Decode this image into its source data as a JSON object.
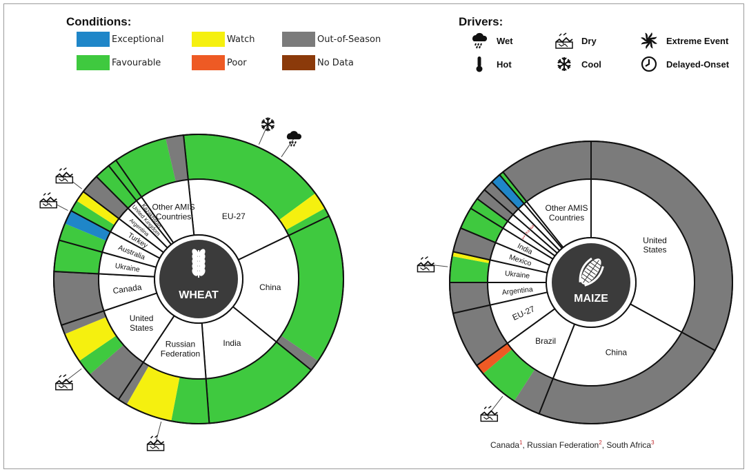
{
  "legend": {
    "conditions_title": "Conditions:",
    "conditions": [
      {
        "key": "exceptional",
        "label": "Exceptional",
        "color": "#1f86c8"
      },
      {
        "key": "watch",
        "label": "Watch",
        "color": "#f5f00f"
      },
      {
        "key": "oos",
        "label": "Out-of-Season",
        "color": "#7b7b7b"
      },
      {
        "key": "favourable",
        "label": "Favourable",
        "color": "#3fc93f"
      },
      {
        "key": "poor",
        "label": "Poor",
        "color": "#ee5a24"
      },
      {
        "key": "nodata",
        "label": "No Data",
        "color": "#8b3a0a"
      }
    ],
    "drivers_title": "Drivers:",
    "drivers": [
      {
        "key": "wet",
        "label": "Wet",
        "icon": "rain-cloud-icon"
      },
      {
        "key": "dry",
        "label": "Dry",
        "icon": "dry-cracked-soil-icon"
      },
      {
        "key": "extreme",
        "label": "Extreme Event",
        "icon": "hurricane-icon"
      },
      {
        "key": "hot",
        "label": "Hot",
        "icon": "thermometer-icon"
      },
      {
        "key": "cool",
        "label": "Cool",
        "icon": "snowflake-icon"
      },
      {
        "key": "delayed",
        "label": "Delayed-Onset",
        "icon": "clock-icon"
      }
    ]
  },
  "chart_data": [
    {
      "type": "pie",
      "subtype": "sunburst",
      "center_label": "WHEAT",
      "center_icon": "wheat-icon",
      "countries": [
        {
          "name": "EU-27",
          "share": 0.195,
          "conditions": [
            {
              "c": "favourable",
              "w": 0.85
            },
            {
              "c": "watch",
              "w": 0.1
            },
            {
              "c": "favourable",
              "w": 0.05
            }
          ],
          "drivers": [
            "cool",
            "wet"
          ]
        },
        {
          "name": "China",
          "share": 0.18,
          "conditions": [
            {
              "c": "favourable",
              "w": 0.93
            },
            {
              "c": "oos",
              "w": 0.07
            }
          ],
          "drivers": []
        },
        {
          "name": "India",
          "share": 0.13,
          "conditions": [
            {
              "c": "favourable",
              "w": 1.0
            }
          ],
          "drivers": []
        },
        {
          "name": "Russian Federation",
          "share": 0.105,
          "conditions": [
            {
              "c": "favourable",
              "w": 0.4
            },
            {
              "c": "watch",
              "w": 0.5
            },
            {
              "c": "oos",
              "w": 0.1
            }
          ],
          "drivers": [
            "dry"
          ]
        },
        {
          "name": "United States",
          "share": 0.105,
          "conditions": [
            {
              "c": "oos",
              "w": 0.4
            },
            {
              "c": "favourable",
              "w": 0.18
            },
            {
              "c": "watch",
              "w": 0.32
            },
            {
              "c": "oos",
              "w": 0.1
            }
          ],
          "drivers": [
            "dry"
          ]
        },
        {
          "name": "Canada",
          "share": 0.06,
          "conditions": [
            {
              "c": "oos",
              "w": 1.0
            }
          ],
          "drivers": []
        },
        {
          "name": "Ukraine",
          "share": 0.035,
          "conditions": [
            {
              "c": "favourable",
              "w": 1.0
            }
          ],
          "drivers": []
        },
        {
          "name": "Australia",
          "share": 0.035,
          "conditions": [
            {
              "c": "favourable",
              "w": 0.55
            },
            {
              "c": "exceptional",
              "w": 0.45
            }
          ],
          "drivers": []
        },
        {
          "name": "Turkey",
          "share": 0.025,
          "conditions": [
            {
              "c": "favourable",
              "w": 0.5
            },
            {
              "c": "watch",
              "w": 0.5
            }
          ],
          "drivers": [
            "dry",
            "dry"
          ]
        },
        {
          "name": "Argentina",
          "share": 0.022,
          "conditions": [
            {
              "c": "oos",
              "w": 1.0
            }
          ],
          "drivers": []
        },
        {
          "name": "United Kingdom",
          "share": 0.018,
          "conditions": [
            {
              "c": "favourable",
              "w": 1.0
            }
          ],
          "drivers": []
        },
        {
          "name": "Kazakhstan",
          "share": 0.01,
          "conditions": [
            {
              "c": "favourable",
              "w": 1.0
            }
          ],
          "drivers": []
        },
        {
          "name": "Other AMIS Countries",
          "share": 0.08,
          "conditions": [
            {
              "c": "favourable",
              "w": 0.75
            },
            {
              "c": "oos",
              "w": 0.25
            }
          ],
          "drivers": []
        }
      ]
    },
    {
      "type": "pie",
      "subtype": "sunburst",
      "center_label": "MAIZE",
      "center_icon": "maize-icon",
      "countries": [
        {
          "name": "United States",
          "share": 0.33,
          "conditions": [
            {
              "c": "oos",
              "w": 1.0
            }
          ],
          "drivers": []
        },
        {
          "name": "China",
          "share": 0.23,
          "conditions": [
            {
              "c": "oos",
              "w": 1.0
            }
          ],
          "drivers": []
        },
        {
          "name": "Brazil",
          "share": 0.09,
          "conditions": [
            {
              "c": "oos",
              "w": 0.35
            },
            {
              "c": "favourable",
              "w": 0.52
            },
            {
              "c": "poor",
              "w": 0.13
            }
          ],
          "drivers": [
            "dry"
          ]
        },
        {
          "name": "EU-27",
          "share": 0.065,
          "conditions": [
            {
              "c": "oos",
              "w": 1.0
            }
          ],
          "drivers": []
        },
        {
          "name": "Argentina",
          "share": 0.035,
          "conditions": [
            {
              "c": "oos",
              "w": 1.0
            }
          ],
          "drivers": []
        },
        {
          "name": "Ukraine",
          "share": 0.035,
          "conditions": [
            {
              "c": "favourable",
              "w": 0.85
            },
            {
              "c": "watch",
              "w": 0.15
            }
          ],
          "drivers": [
            "dry"
          ]
        },
        {
          "name": "Mexico",
          "share": 0.028,
          "conditions": [
            {
              "c": "oos",
              "w": 1.0
            }
          ],
          "drivers": []
        },
        {
          "name": "India",
          "share": 0.025,
          "conditions": [
            {
              "c": "favourable",
              "w": 1.0
            }
          ],
          "drivers": []
        },
        {
          "name": "1",
          "share": 0.013,
          "conditions": [
            {
              "c": "favourable",
              "w": 1.0
            }
          ],
          "drivers": []
        },
        {
          "name": "2",
          "share": 0.013,
          "conditions": [
            {
              "c": "oos",
              "w": 1.0
            }
          ],
          "drivers": []
        },
        {
          "name": "3",
          "share": 0.012,
          "conditions": [
            {
              "c": "oos",
              "w": 1.0
            }
          ],
          "drivers": []
        },
        {
          "name": "",
          "share": 0.012,
          "conditions": [
            {
              "c": "exceptional",
              "w": 1.0
            }
          ],
          "drivers": []
        },
        {
          "name": "",
          "share": 0.005,
          "conditions": [
            {
              "c": "favourable",
              "w": 1.0
            }
          ],
          "drivers": []
        },
        {
          "name": "Other AMIS Countries",
          "share": 0.107,
          "conditions": [
            {
              "c": "oos",
              "w": 1.0
            }
          ],
          "drivers": []
        }
      ],
      "footnote": [
        {
          "name": "Canada",
          "mark": "1"
        },
        {
          "name": "Russian Federation",
          "mark": "2"
        },
        {
          "name": "South Africa",
          "mark": "3"
        }
      ]
    }
  ]
}
